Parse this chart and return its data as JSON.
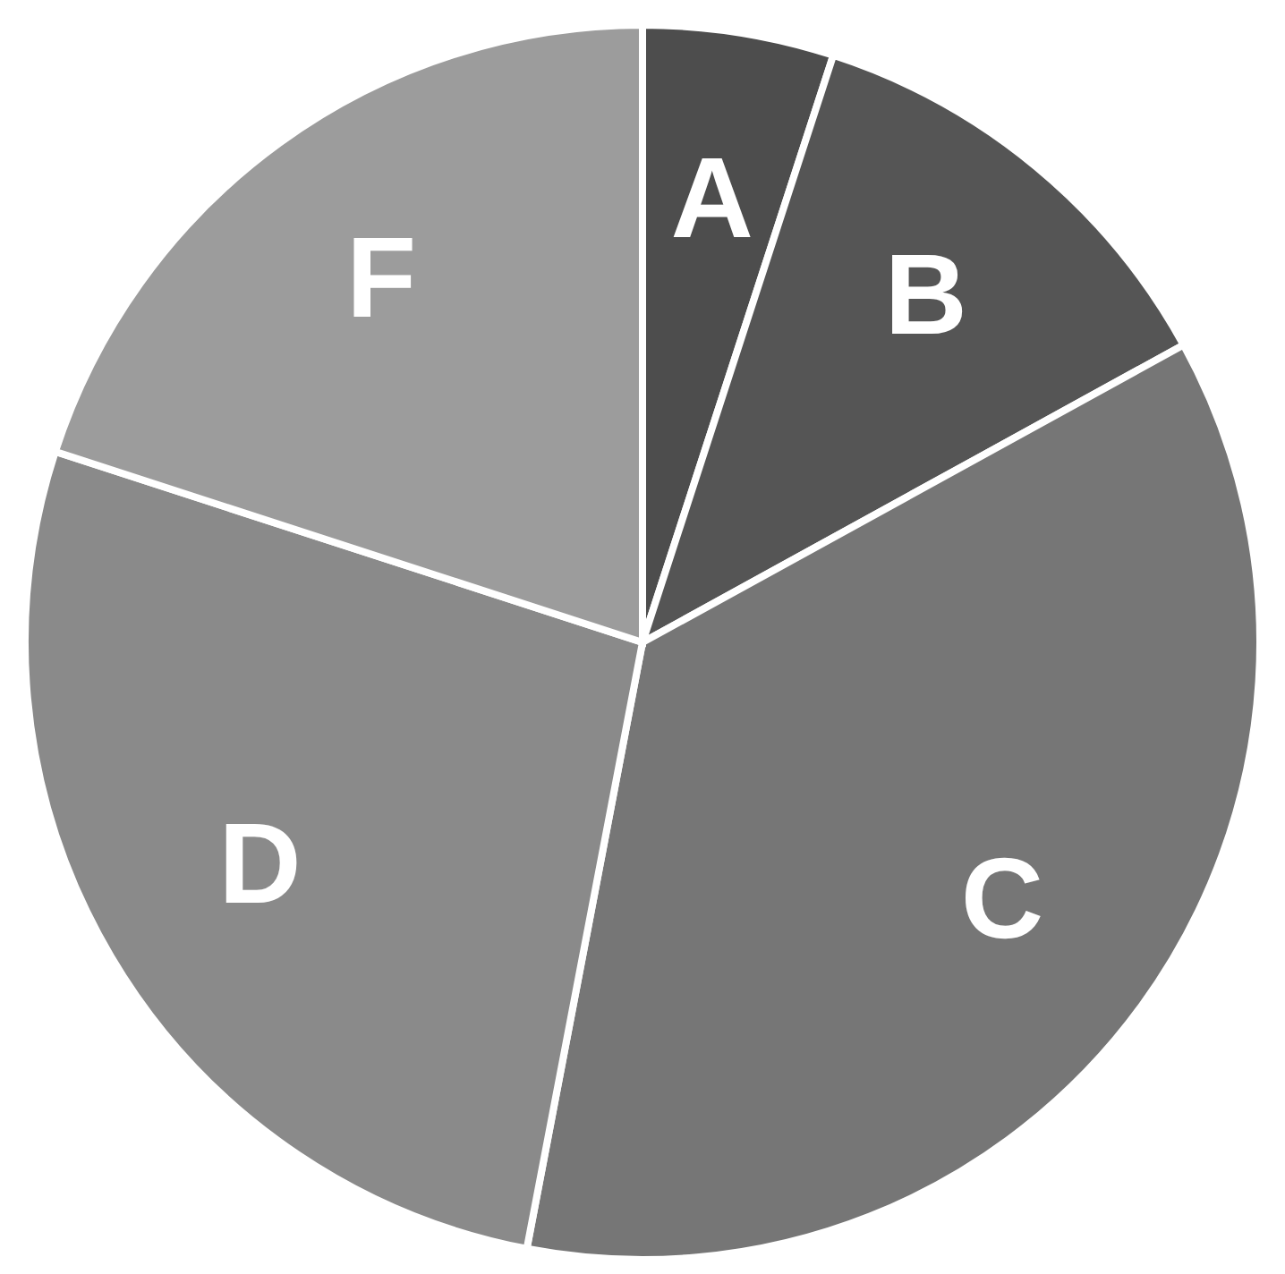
{
  "chart_data": {
    "type": "pie",
    "categories": [
      "A",
      "B",
      "C",
      "D",
      "F"
    ],
    "values": [
      5,
      12,
      36,
      27,
      20
    ],
    "colors": [
      "#4d4d4d",
      "#555555",
      "#767676",
      "#8a8a8a",
      "#9c9c9c"
    ]
  }
}
